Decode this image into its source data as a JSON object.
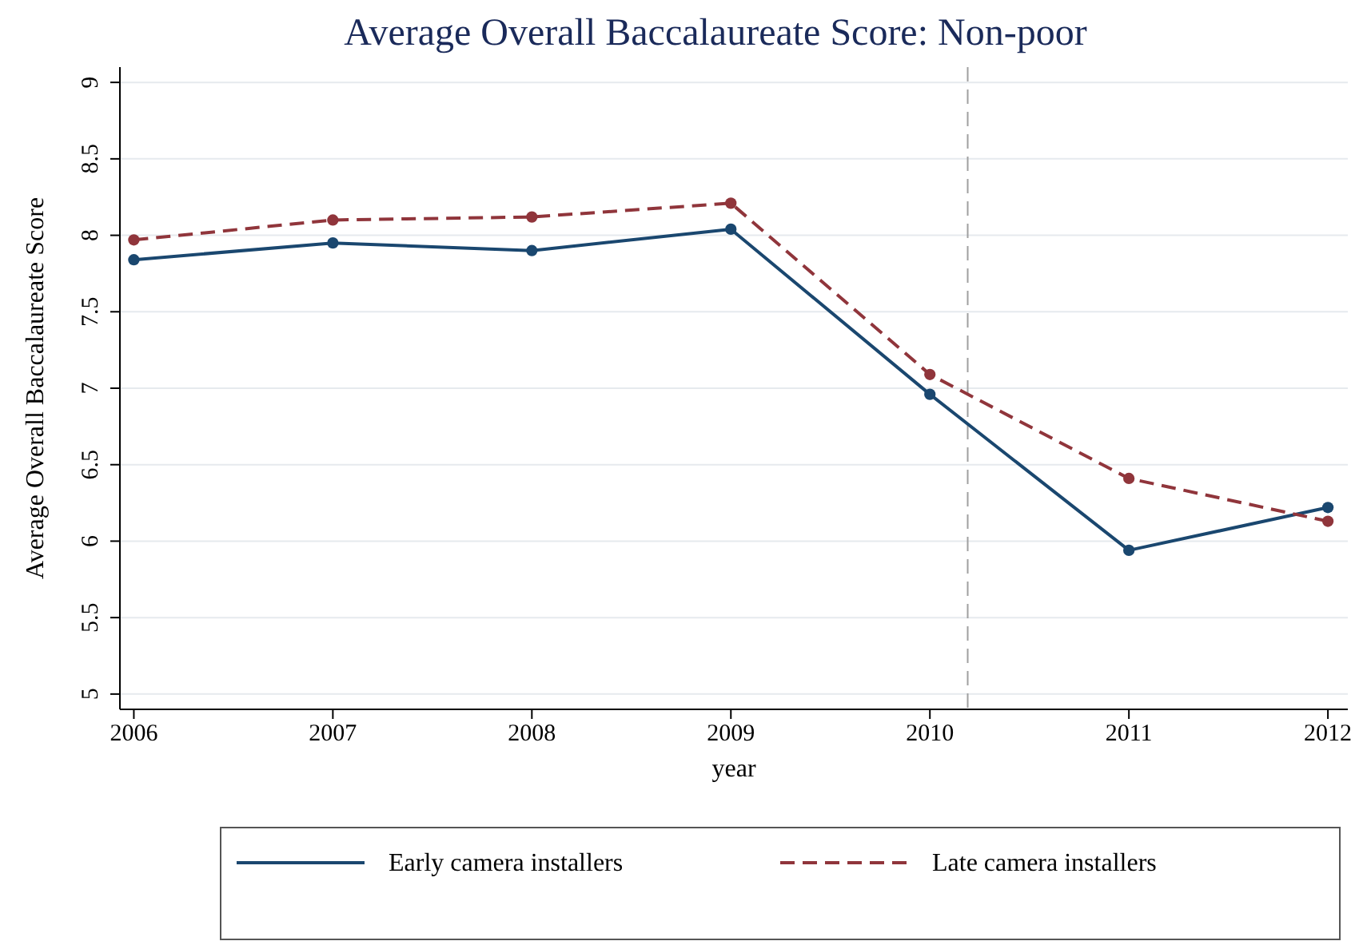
{
  "chart_data": {
    "type": "line",
    "title": "Average Overall Baccalaureate Score: Non-poor",
    "xlabel": "year",
    "ylabel": "Average Overall Baccalaureate Score",
    "x": [
      2006,
      2007,
      2008,
      2009,
      2010,
      2011,
      2012
    ],
    "series": [
      {
        "name": "Early camera installers",
        "color": "#1a476f",
        "line_style": "solid",
        "values": [
          7.84,
          7.95,
          7.9,
          8.04,
          6.96,
          5.94,
          6.22
        ]
      },
      {
        "name": "Late camera installers",
        "color": "#90353b",
        "line_style": "dashed",
        "values": [
          7.97,
          8.1,
          8.12,
          8.21,
          7.09,
          6.41,
          6.13
        ]
      }
    ],
    "xlim": [
      2005.93,
      2012.1
    ],
    "xticks": [
      2006,
      2007,
      2008,
      2009,
      2010,
      2011,
      2012
    ],
    "ylim": [
      4.9,
      9.1
    ],
    "yticks": [
      5,
      5.5,
      6,
      6.5,
      7,
      7.5,
      8,
      8.5,
      9
    ],
    "ref_lines": [
      {
        "axis": "x",
        "value": 2010.19,
        "color": "#a0a0a0",
        "line_style": "dashed"
      }
    ],
    "grid": "y",
    "marker": "circle",
    "legend": "bottom"
  }
}
